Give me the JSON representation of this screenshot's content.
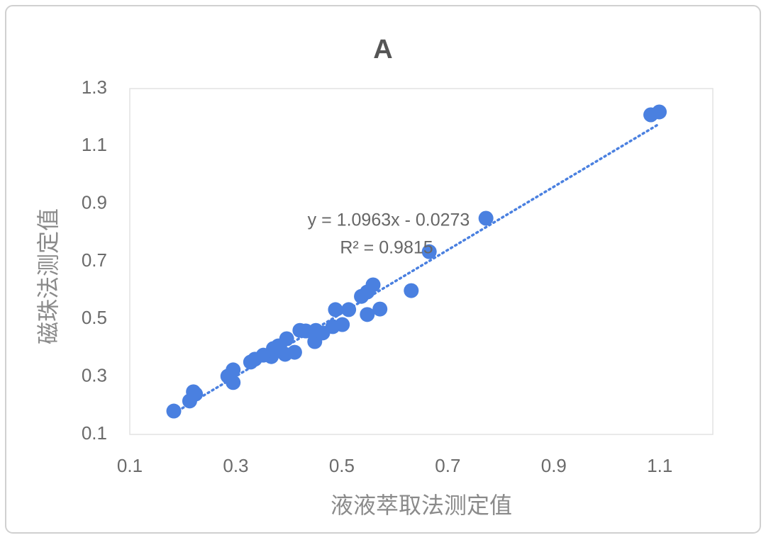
{
  "chart_data": {
    "type": "scatter",
    "title": "A",
    "x_label": "液液萃取法测定值",
    "y_label": "磁珠法测定值",
    "x": [
      0.183,
      0.213,
      0.22,
      0.224,
      0.285,
      0.295,
      0.295,
      0.328,
      0.336,
      0.352,
      0.367,
      0.371,
      0.38,
      0.393,
      0.396,
      0.411,
      0.421,
      0.432,
      0.449,
      0.451,
      0.464,
      0.483,
      0.488,
      0.501,
      0.513,
      0.537,
      0.548,
      0.559,
      0.548,
      0.572,
      0.631,
      0.665,
      0.772,
      1.083,
      1.099
    ],
    "series": [
      {
        "color": "#4a80e0",
        "values": [
          0.181,
          0.216,
          0.248,
          0.24,
          0.302,
          0.324,
          0.28,
          0.351,
          0.361,
          0.375,
          0.37,
          0.398,
          0.407,
          0.378,
          0.432,
          0.385,
          0.461,
          0.459,
          0.422,
          0.461,
          0.452,
          0.474,
          0.533,
          0.481,
          0.533,
          0.579,
          0.594,
          0.619,
          0.516,
          0.535,
          0.599,
          0.734,
          0.85,
          1.209,
          1.219
        ]
      }
    ],
    "trendline": {
      "slope": 1.0963,
      "intercept": -0.0273,
      "equation": "y = 1.0963x - 0.0273",
      "r_squared": "R² = 0.9815"
    },
    "xlim": [
      0.1,
      1.2
    ],
    "xticks": [
      0.1,
      0.3,
      0.5,
      0.7,
      0.9,
      1.1
    ],
    "ylim": [
      0.1,
      1.3
    ],
    "yticks": [
      0.1,
      0.3,
      0.5,
      0.7,
      0.9,
      1.1,
      1.3
    ],
    "grid": false
  }
}
